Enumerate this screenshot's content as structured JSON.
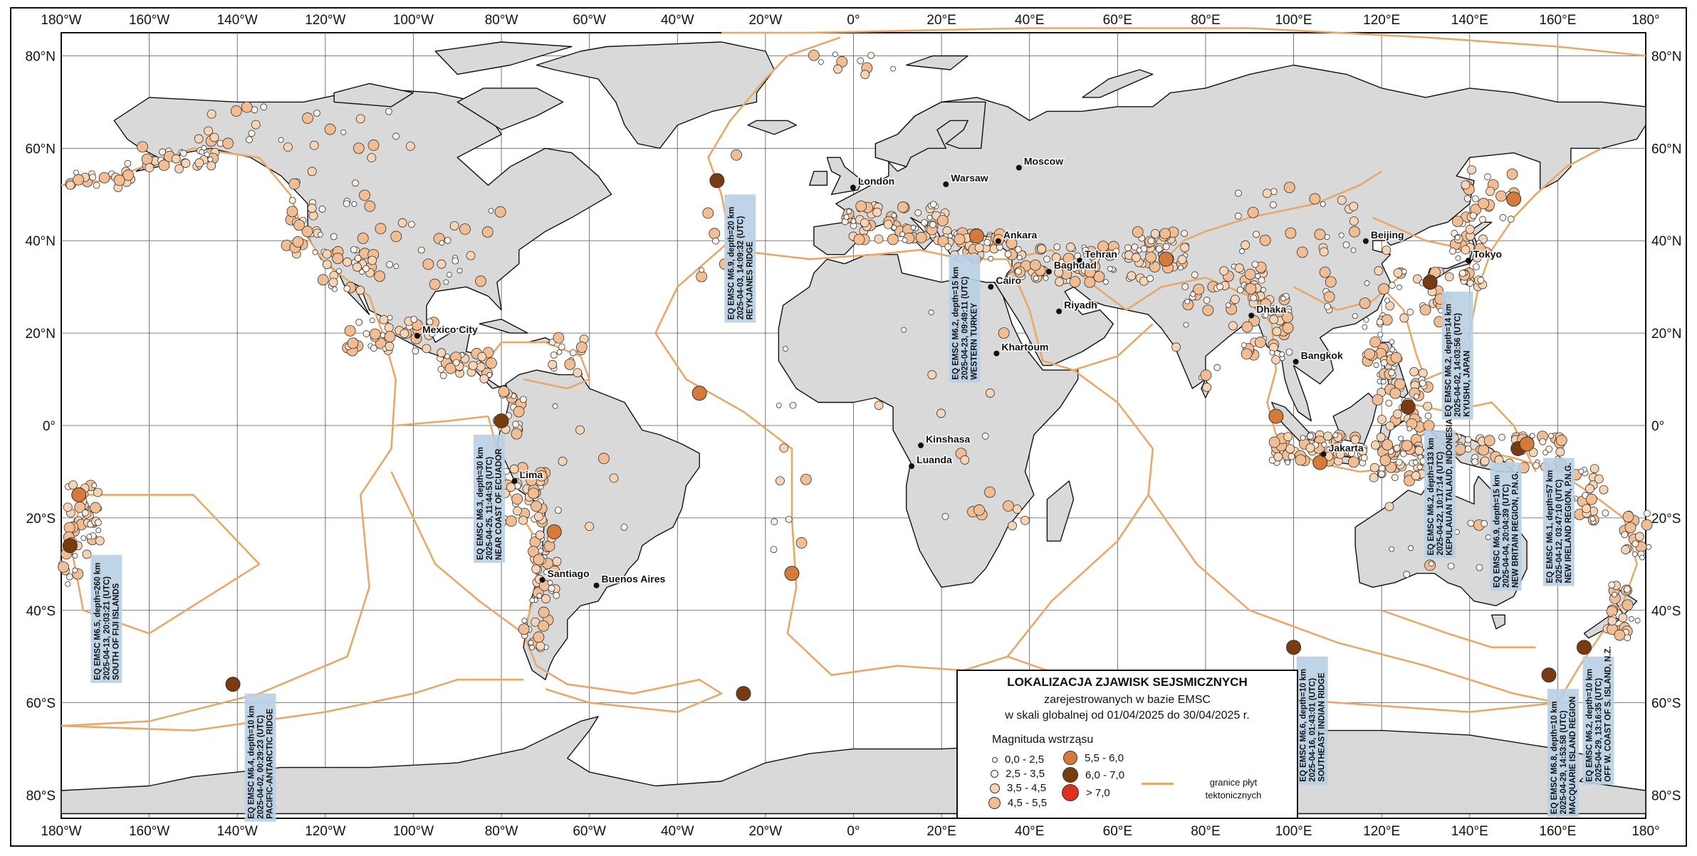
{
  "map": {
    "lon_labels": [
      "180°W",
      "160°W",
      "140°W",
      "120°W",
      "100°W",
      "80°W",
      "60°W",
      "40°W",
      "20°W",
      "0°",
      "20°E",
      "40°E",
      "60°E",
      "80°E",
      "100°E",
      "120°E",
      "140°E",
      "160°E",
      "180°"
    ],
    "lat_labels_left": [
      "80°N",
      "60°N",
      "40°N",
      "20°N",
      "0°",
      "20°S",
      "40°S",
      "60°S",
      "80°S"
    ],
    "lat_labels_right": [
      "80°N",
      "60°N",
      "40°N",
      "20°N",
      "0°",
      "20°S",
      "40°S",
      "60°S",
      "80°S"
    ],
    "colors": {
      "land": "#d9d9d9",
      "coast": "#111111",
      "grid": "#555555",
      "plates": "#e8a86a",
      "label_box": "#b8cfe4",
      "m0": "#ffffff",
      "m1": "#fdf0e4",
      "m2": "#f8d3b4",
      "m3": "#f2bd92",
      "m4": "#d57a3a",
      "m5": "#7a3b10",
      "m6": "#e03020"
    }
  },
  "cities": [
    {
      "name": "London",
      "lon": -0.1,
      "lat": 51.5
    },
    {
      "name": "Warsaw",
      "lon": 21.0,
      "lat": 52.2
    },
    {
      "name": "Moscow",
      "lon": 37.6,
      "lat": 55.8
    },
    {
      "name": "Ankara",
      "lon": 32.9,
      "lat": 39.9
    },
    {
      "name": "Tehran",
      "lon": 51.4,
      "lat": 35.7
    },
    {
      "name": "Baghdad",
      "lon": 44.4,
      "lat": 33.3
    },
    {
      "name": "Cairo",
      "lon": 31.2,
      "lat": 30.0
    },
    {
      "name": "Riyadh",
      "lon": 46.7,
      "lat": 24.7
    },
    {
      "name": "Khartoum",
      "lon": 32.5,
      "lat": 15.6
    },
    {
      "name": "Kinshasa",
      "lon": 15.3,
      "lat": -4.3
    },
    {
      "name": "Luanda",
      "lon": 13.2,
      "lat": -8.8
    },
    {
      "name": "Beijing",
      "lon": 116.4,
      "lat": 39.9
    },
    {
      "name": "Tokyo",
      "lon": 139.7,
      "lat": 35.7
    },
    {
      "name": "Dhaka",
      "lon": 90.4,
      "lat": 23.8
    },
    {
      "name": "Bangkok",
      "lon": 100.5,
      "lat": 13.8
    },
    {
      "name": "Jakarta",
      "lon": 106.8,
      "lat": -6.2
    },
    {
      "name": "Mexico City",
      "lon": -99.1,
      "lat": 19.4
    },
    {
      "name": "Lima",
      "lon": -77.0,
      "lat": -12.0
    },
    {
      "name": "Santiago",
      "lon": -70.7,
      "lat": -33.4
    },
    {
      "name": "Buenos Aires",
      "lon": -58.4,
      "lat": -34.6
    }
  ],
  "annotations": [
    {
      "id": "fiji",
      "lines": [
        "EQ EMSC M6.5, depth=260 km",
        "2025-04-13, 20:03:21 (UTC)",
        "SOUTH OF FIJI ISLANDS"
      ]
    },
    {
      "id": "pacific-antarctic",
      "lines": [
        "EQ EMSC M6.4, depth=10 km",
        "2025-04-02, 00:29:23 (UTC)",
        "PACIFIC-ANTARCTIC RIDGE"
      ]
    },
    {
      "id": "ecuador",
      "lines": [
        "EQ EMSC M6.3, depth=30 km",
        "2025-04-25, 11:44:53 (UTC)",
        "NEAR COAST OF ECUADOR"
      ]
    },
    {
      "id": "reykjanes",
      "lines": [
        "EQ EMSC M6.9, depth=20 km",
        "2025-04-03, 14:09:32 (UTC)",
        "REYKJANES RIDGE"
      ]
    },
    {
      "id": "turkey",
      "lines": [
        "EQ EMSC M6.2, depth=15 km",
        "2025-04-23, 09:49:11 (UTC)",
        "WESTERN TURKEY"
      ]
    },
    {
      "id": "se-indian",
      "lines": [
        "EQ EMSC M6.6, depth=10 km",
        "2025-04-16, 01:43:01 (UTC)",
        "SOUTHEAST INDIAN RIDGE"
      ]
    },
    {
      "id": "talaud",
      "lines": [
        "EQ EMSC M6.2, depth=133 km",
        "2025-04-22, 10:17:14 (UTC)",
        "KEPULAUAN TALAUD, INDONESIA"
      ]
    },
    {
      "id": "kyushu",
      "lines": [
        "EQ EMSC M6.2, depth=14 km",
        "2025-04-02, 14:03:56 (UTC)",
        "KYUSHU, JAPAN"
      ]
    },
    {
      "id": "new-britain",
      "lines": [
        "EQ EMSC M6.9, depth=15 km",
        "2025-04-04, 20:04:39 (UTC)",
        "NEW BRITAIN REGION, P.N.G."
      ]
    },
    {
      "id": "new-ireland",
      "lines": [
        "EQ EMSC M6.1, depth=57 km",
        "2025-04-12, 03:47:10 (UTC)",
        "NEW IRELAND REGION, P.N.G."
      ]
    },
    {
      "id": "macquarie",
      "lines": [
        "EQ EMSC M6.8, depth=10 km",
        "2025-04-29, 14:53:58 (UTC)",
        "MACQUARIE ISLAND REGION"
      ]
    },
    {
      "id": "s-island-nz",
      "lines": [
        "EQ EMSC M6.2, depth=10 km",
        "2025-04-29, 13:16:35 (UTC)",
        "OFF W. COAST OF S. ISLAND, N.Z."
      ]
    }
  ],
  "legend": {
    "title": "LOKALIZACJA ZJAWISK SEJSMICZNYCH",
    "subtitle_lines": [
      "zarejestrowanych w bazie EMSC",
      "w skali globalnej od 01/04/2025 do 30/04/2025 r."
    ],
    "magnitude_header": "Magnituda wstrząsu",
    "classes": [
      "0,0 - 2,5",
      "2,5 - 3,5",
      "3,5 - 4,5",
      "4,5 - 5,5",
      "5,5 - 6,0",
      "6,0 - 7,0",
      "> 7,0"
    ],
    "plate_label_lines": [
      "granice płyt",
      "tektonicznych"
    ]
  }
}
